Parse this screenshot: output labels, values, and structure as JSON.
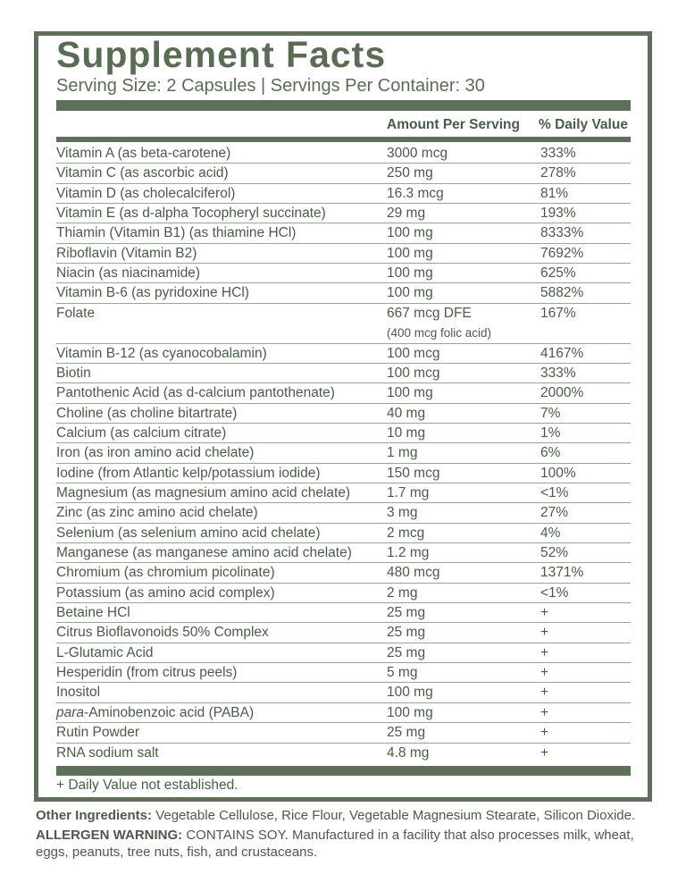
{
  "title": "Supplement Facts",
  "serving": "Serving Size: 2 Capsules | Servings Per Container: 30",
  "columns": {
    "amount": "Amount Per Serving",
    "dv": "% Daily Value"
  },
  "rows": [
    {
      "name": "Vitamin A (as beta-carotene)",
      "amount": "3000 mcg",
      "dv": "333%"
    },
    {
      "name": "Vitamin C (as ascorbic acid)",
      "amount": "250 mg",
      "dv": "278%"
    },
    {
      "name": "Vitamin D (as cholecalciferol)",
      "amount": "16.3 mcg",
      "dv": "81%"
    },
    {
      "name": "Vitamin E (as d-alpha Tocopheryl succinate)",
      "amount": "29 mg",
      "dv": "193%"
    },
    {
      "name": "Thiamin (Vitamin B1) (as thiamine HCl)",
      "amount": "100 mg",
      "dv": "8333%"
    },
    {
      "name": "Riboflavin (Vitamin B2)",
      "amount": "100 mg",
      "dv": "7692%"
    },
    {
      "name": "Niacin (as niacinamide)",
      "amount": "100 mg",
      "dv": "625%"
    },
    {
      "name": "Vitamin B-6 (as pyridoxine HCl)",
      "amount": "100 mg",
      "dv": "5882%"
    },
    {
      "name": "Folate",
      "amount": "667 mcg DFE",
      "note": "(400 mcg folic acid)",
      "dv": "167%"
    },
    {
      "name": "Vitamin B-12 (as cyanocobalamin)",
      "amount": "100 mcg",
      "dv": "4167%"
    },
    {
      "name": "Biotin",
      "amount": "100 mcg",
      "dv": "333%"
    },
    {
      "name": "Pantothenic Acid (as d-calcium pantothenate)",
      "amount": "100 mg",
      "dv": "2000%"
    },
    {
      "name": "Choline (as choline bitartrate)",
      "amount": "40 mg",
      "dv": "7%"
    },
    {
      "name": "Calcium (as calcium citrate)",
      "amount": "10 mg",
      "dv": "1%"
    },
    {
      "name": "Iron (as iron amino acid chelate)",
      "amount": "1 mg",
      "dv": "6%"
    },
    {
      "name": "Iodine (from Atlantic kelp/potassium iodide)",
      "amount": "150 mcg",
      "dv": "100%"
    },
    {
      "name": "Magnesium (as magnesium amino acid chelate)",
      "amount": "1.7 mg",
      "dv": "<1%"
    },
    {
      "name": "Zinc (as zinc amino acid chelate)",
      "amount": "3 mg",
      "dv": "27%"
    },
    {
      "name": "Selenium (as selenium amino acid chelate)",
      "amount": "2 mcg",
      "dv": "4%"
    },
    {
      "name": "Manganese (as manganese amino acid chelate)",
      "amount": "1.2 mg",
      "dv": "52%"
    },
    {
      "name": "Chromium (as chromium picolinate)",
      "amount": "480 mcg",
      "dv": "1371%"
    },
    {
      "name": "Potassium (as amino acid complex)",
      "amount": "2 mg",
      "dv": "<1%"
    },
    {
      "name": "Betaine HCl",
      "amount": "25 mg",
      "dv": "+"
    },
    {
      "name": "Citrus Bioflavonoids 50% Complex",
      "amount": "25 mg",
      "dv": "+"
    },
    {
      "name": "L-Glutamic Acid",
      "amount": "25 mg",
      "dv": "+"
    },
    {
      "name": "Hesperidin (from citrus peels)",
      "amount": "5 mg",
      "dv": "+"
    },
    {
      "name": "Inositol",
      "amount": "100 mg",
      "dv": "+"
    },
    {
      "name_italic": "para",
      "name": "-Aminobenzoic acid (PABA)",
      "amount": "100 mg",
      "dv": "+"
    },
    {
      "name": "Rutin Powder",
      "amount": "25 mg",
      "dv": "+"
    },
    {
      "name": "RNA sodium salt",
      "amount": "4.8 mg",
      "dv": "+"
    }
  ],
  "footnote": "+ Daily Value not established.",
  "other_ingredients": {
    "label": "Other Ingredients:",
    "text": "Vegetable Cellulose, Rice Flour, Vegetable Magnesium Stearate, Silicon Dioxide."
  },
  "allergen": {
    "label": "ALLERGEN WARNING:",
    "text": "CONTAINS SOY. Manufactured in a facility that also processes milk, wheat, eggs, peanuts, tree nuts, fish, and crustaceans."
  }
}
